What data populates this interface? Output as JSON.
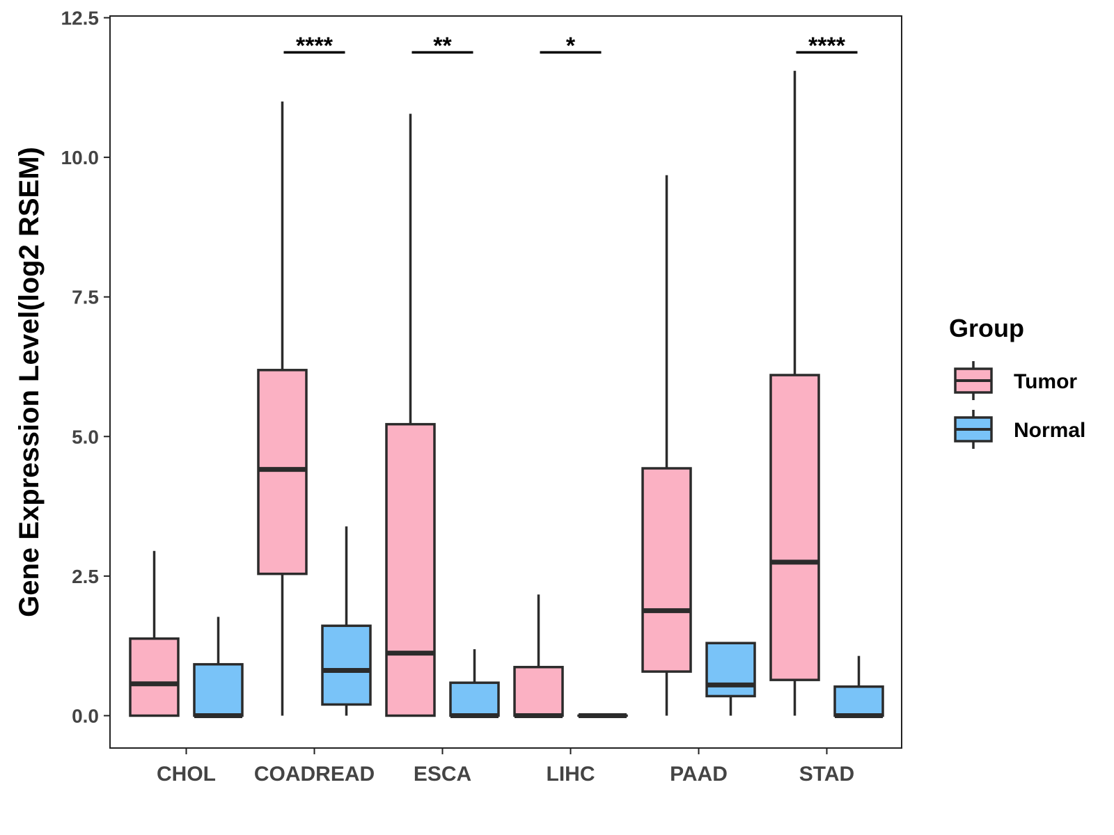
{
  "chart_data": {
    "type": "boxplot",
    "title": "",
    "xlabel": "",
    "ylabel": "Gene Expression Level(log2 RSEM)",
    "ylim": [
      -0.6,
      12.5
    ],
    "yticks": [
      0.0,
      2.5,
      5.0,
      7.5,
      10.0,
      12.5
    ],
    "ytick_labels": [
      "0.0",
      "2.5",
      "5.0",
      "7.5",
      "10.0",
      "12.5"
    ],
    "categories": [
      "CHOL",
      "COADREAD",
      "ESCA",
      "LIHC",
      "PAAD",
      "STAD"
    ],
    "legend": {
      "title": "Group",
      "position": "right",
      "entries": [
        {
          "name": "Tumor",
          "color": "#fbb1c3"
        },
        {
          "name": "Normal",
          "color": "#79c3f8"
        }
      ]
    },
    "series": [
      {
        "name": "Tumor",
        "color": "#fbb1c3",
        "boxes": [
          {
            "min": 0.0,
            "q1": 0.0,
            "median": 0.57,
            "q3": 1.38,
            "max": 2.95
          },
          {
            "min": 0.0,
            "q1": 2.54,
            "median": 4.41,
            "q3": 6.19,
            "max": 11.0
          },
          {
            "min": 0.0,
            "q1": 0.0,
            "median": 1.12,
            "q3": 5.22,
            "max": 10.78
          },
          {
            "min": 0.0,
            "q1": 0.0,
            "median": 0.0,
            "q3": 0.87,
            "max": 2.17
          },
          {
            "min": 0.0,
            "q1": 0.79,
            "median": 1.88,
            "q3": 4.43,
            "max": 9.68
          },
          {
            "min": 0.0,
            "q1": 0.64,
            "median": 2.75,
            "q3": 6.1,
            "max": 11.55
          }
        ]
      },
      {
        "name": "Normal",
        "color": "#79c3f8",
        "boxes": [
          {
            "min": 0.0,
            "q1": 0.0,
            "median": 0.0,
            "q3": 0.92,
            "max": 1.77
          },
          {
            "min": 0.0,
            "q1": 0.2,
            "median": 0.81,
            "q3": 1.61,
            "max": 3.39
          },
          {
            "min": 0.0,
            "q1": 0.0,
            "median": 0.0,
            "q3": 0.59,
            "max": 1.19
          },
          {
            "min": 0.0,
            "q1": 0.0,
            "median": 0.0,
            "q3": 0.0,
            "max": 0.0
          },
          {
            "min": 0.0,
            "q1": 0.35,
            "median": 0.55,
            "q3": 1.3,
            "max": 1.3
          },
          {
            "min": 0.0,
            "q1": 0.0,
            "median": 0.0,
            "q3": 0.52,
            "max": 1.07
          }
        ]
      }
    ],
    "annotations": [
      {
        "category": "CHOL",
        "label": ""
      },
      {
        "category": "COADREAD",
        "label": "****"
      },
      {
        "category": "ESCA",
        "label": "**"
      },
      {
        "category": "LIHC",
        "label": "*"
      },
      {
        "category": "PAAD",
        "label": ""
      },
      {
        "category": "STAD",
        "label": "****"
      }
    ],
    "significance_bar_y": 11.88,
    "grid": false
  }
}
